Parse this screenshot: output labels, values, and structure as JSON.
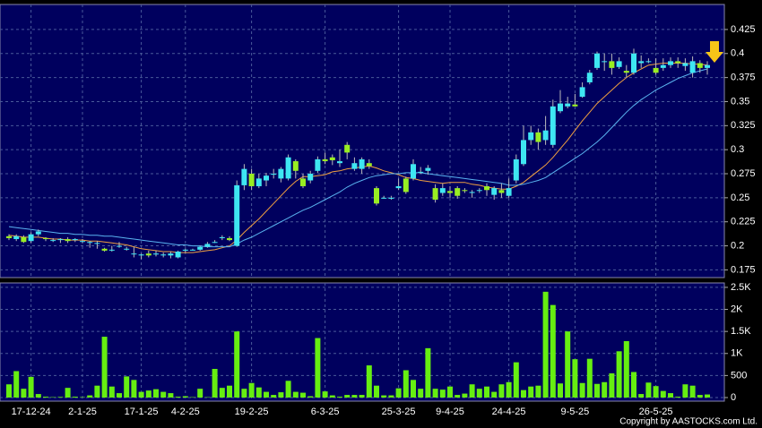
{
  "chart_data": [
    {
      "type": "candlestick",
      "categories": [
        null,
        null,
        null,
        "17-12-24",
        null,
        null,
        null,
        null,
        null,
        null,
        "2-1-25",
        null,
        null,
        null,
        null,
        null,
        null,
        null,
        "17-1-25",
        null,
        null,
        null,
        null,
        null,
        "4-2-25",
        null,
        null,
        null,
        null,
        null,
        null,
        null,
        null,
        "19-2-25",
        null,
        null,
        null,
        null,
        null,
        null,
        null,
        null,
        null,
        "6-3-25",
        null,
        null,
        null,
        null,
        null,
        null,
        null,
        null,
        null,
        "25-3-25",
        null,
        null,
        null,
        null,
        null,
        null,
        "9-4-25",
        null,
        null,
        null,
        null,
        null,
        null,
        null,
        "24-4-25",
        null,
        null,
        null,
        null,
        null,
        null,
        null,
        null,
        "9-5-25",
        null,
        null,
        null,
        null,
        null,
        null,
        null,
        null,
        null,
        null,
        "26-5-25",
        null,
        null,
        null,
        null,
        null,
        null,
        null
      ],
      "open": [
        0.21,
        0.207,
        0.209,
        0.205,
        0.212,
        0.208,
        0.206,
        0.206,
        0.207,
        0.206,
        0.205,
        0.204,
        0.203,
        0.197,
        0.196,
        0.2,
        0.197,
        0.192,
        0.19,
        0.192,
        0.191,
        0.19,
        0.19,
        0.188,
        0.195,
        0.196,
        0.196,
        0.199,
        0.204,
        0.208,
        0.208,
        0.2,
        0.263,
        0.275,
        0.262,
        0.268,
        0.274,
        0.27,
        0.27,
        0.288,
        0.27,
        0.268,
        0.278,
        0.29,
        0.292,
        0.286,
        0.305,
        0.28,
        0.28,
        0.286,
        0.26,
        0.25,
        0.249,
        0.26,
        0.27,
        0.27,
        0.277,
        0.278,
        0.26,
        0.255,
        0.257,
        0.26,
        0.258,
        0.255,
        0.258,
        0.262,
        0.253,
        0.258,
        0.252,
        0.268,
        0.285,
        0.31,
        0.318,
        0.31,
        0.305,
        0.34,
        0.345,
        0.347,
        0.355,
        0.37,
        0.385,
        0.392,
        0.392,
        0.386,
        0.382,
        0.38,
        0.39,
        0.392,
        0.385,
        0.385,
        0.388,
        0.392,
        0.387,
        0.38,
        0.39,
        0.385
      ],
      "high": [
        0.212,
        0.212,
        0.211,
        0.214,
        0.217,
        0.209,
        0.208,
        0.208,
        0.209,
        0.208,
        0.207,
        0.205,
        0.205,
        0.198,
        0.2,
        0.204,
        0.199,
        0.199,
        0.192,
        0.195,
        0.195,
        0.193,
        0.194,
        0.195,
        0.197,
        0.197,
        0.2,
        0.204,
        0.206,
        0.211,
        0.21,
        0.268,
        0.285,
        0.28,
        0.275,
        0.276,
        0.28,
        0.282,
        0.295,
        0.29,
        0.275,
        0.278,
        0.293,
        0.297,
        0.295,
        0.3,
        0.308,
        0.292,
        0.292,
        0.29,
        0.262,
        0.252,
        0.252,
        0.27,
        0.272,
        0.29,
        0.282,
        0.284,
        0.264,
        0.265,
        0.262,
        0.262,
        0.26,
        0.258,
        0.26,
        0.265,
        0.262,
        0.265,
        0.27,
        0.295,
        0.325,
        0.325,
        0.322,
        0.335,
        0.352,
        0.362,
        0.355,
        0.358,
        0.37,
        0.383,
        0.402,
        0.4,
        0.4,
        0.396,
        0.388,
        0.405,
        0.398,
        0.395,
        0.395,
        0.395,
        0.396,
        0.396,
        0.395,
        0.397,
        0.393,
        0.392
      ],
      "low": [
        0.206,
        0.205,
        0.203,
        0.203,
        0.21,
        0.205,
        0.204,
        0.203,
        0.203,
        0.204,
        0.203,
        0.198,
        0.197,
        0.194,
        0.194,
        0.198,
        0.195,
        0.188,
        0.186,
        0.188,
        0.189,
        0.188,
        0.187,
        0.187,
        0.193,
        0.195,
        0.195,
        0.198,
        0.203,
        0.206,
        0.205,
        0.199,
        0.258,
        0.258,
        0.26,
        0.262,
        0.27,
        0.266,
        0.268,
        0.27,
        0.26,
        0.265,
        0.276,
        0.285,
        0.284,
        0.282,
        0.29,
        0.278,
        0.275,
        0.28,
        0.242,
        0.249,
        0.248,
        0.258,
        0.254,
        0.268,
        0.275,
        0.274,
        0.245,
        0.252,
        0.25,
        0.249,
        0.255,
        0.25,
        0.255,
        0.252,
        0.248,
        0.25,
        0.25,
        0.265,
        0.283,
        0.305,
        0.3,
        0.305,
        0.302,
        0.338,
        0.343,
        0.345,
        0.354,
        0.368,
        0.383,
        0.382,
        0.378,
        0.384,
        0.375,
        0.378,
        0.385,
        0.39,
        0.378,
        0.382,
        0.385,
        0.385,
        0.382,
        0.375,
        0.38,
        0.378
      ],
      "close": [
        0.208,
        0.21,
        0.204,
        0.212,
        0.215,
        0.207,
        0.206,
        0.207,
        0.205,
        0.207,
        0.205,
        0.204,
        0.203,
        0.195,
        0.196,
        0.2,
        0.197,
        0.192,
        0.191,
        0.19,
        0.192,
        0.191,
        0.192,
        0.194,
        0.196,
        0.196,
        0.199,
        0.202,
        0.204,
        0.209,
        0.206,
        0.263,
        0.28,
        0.262,
        0.27,
        0.273,
        0.275,
        0.28,
        0.292,
        0.278,
        0.262,
        0.275,
        0.29,
        0.288,
        0.289,
        0.288,
        0.297,
        0.286,
        0.29,
        0.283,
        0.244,
        0.25,
        0.25,
        0.262,
        0.256,
        0.285,
        0.277,
        0.281,
        0.248,
        0.26,
        0.255,
        0.252,
        0.257,
        0.256,
        0.258,
        0.258,
        0.26,
        0.255,
        0.26,
        0.29,
        0.31,
        0.318,
        0.308,
        0.32,
        0.345,
        0.348,
        0.348,
        0.345,
        0.365,
        0.38,
        0.4,
        0.392,
        0.385,
        0.392,
        0.38,
        0.4,
        0.392,
        0.392,
        0.38,
        0.388,
        0.392,
        0.39,
        0.39,
        0.392,
        0.385,
        0.388
      ],
      "up_color": "#3ee6f2",
      "down_color": "#99ee22",
      "lines": [
        {
          "color": "#f0a040",
          "values": [
            0.211,
            0.21,
            0.209,
            0.209,
            0.209,
            0.208,
            0.207,
            0.207,
            0.206,
            0.206,
            0.206,
            0.205,
            0.205,
            0.204,
            0.203,
            0.202,
            0.201,
            0.199,
            0.197,
            0.196,
            0.195,
            0.194,
            0.194,
            0.193,
            0.193,
            0.193,
            0.194,
            0.195,
            0.196,
            0.198,
            0.2,
            0.206,
            0.214,
            0.221,
            0.228,
            0.236,
            0.244,
            0.252,
            0.26,
            0.267,
            0.272,
            0.272,
            0.273,
            0.274,
            0.277,
            0.278,
            0.28,
            0.281,
            0.282,
            0.283,
            0.281,
            0.278,
            0.276,
            0.274,
            0.271,
            0.27,
            0.268,
            0.267,
            0.266,
            0.265,
            0.266,
            0.266,
            0.266,
            0.264,
            0.263,
            0.261,
            0.26,
            0.259,
            0.259,
            0.262,
            0.266,
            0.272,
            0.278,
            0.284,
            0.292,
            0.301,
            0.31,
            0.32,
            0.33,
            0.339,
            0.348,
            0.355,
            0.362,
            0.369,
            0.375,
            0.38,
            0.384,
            0.388,
            0.389,
            0.39,
            0.39,
            0.39,
            0.39,
            0.389,
            0.389,
            0.388
          ]
        },
        {
          "color": "#5ab4f0",
          "values": [
            0.22,
            0.219,
            0.218,
            0.217,
            0.216,
            0.215,
            0.214,
            0.213,
            0.213,
            0.212,
            0.212,
            0.211,
            0.211,
            0.21,
            0.21,
            0.209,
            0.208,
            0.207,
            0.206,
            0.205,
            0.204,
            0.203,
            0.202,
            0.201,
            0.201,
            0.2,
            0.2,
            0.199,
            0.199,
            0.199,
            0.199,
            0.202,
            0.206,
            0.209,
            0.213,
            0.217,
            0.221,
            0.225,
            0.229,
            0.233,
            0.237,
            0.24,
            0.244,
            0.248,
            0.252,
            0.256,
            0.261,
            0.265,
            0.268,
            0.271,
            0.273,
            0.274,
            0.275,
            0.275,
            0.276,
            0.276,
            0.276,
            0.275,
            0.274,
            0.273,
            0.272,
            0.271,
            0.27,
            0.269,
            0.268,
            0.267,
            0.266,
            0.265,
            0.263,
            0.263,
            0.264,
            0.266,
            0.268,
            0.271,
            0.276,
            0.281,
            0.286,
            0.291,
            0.296,
            0.302,
            0.308,
            0.315,
            0.323,
            0.331,
            0.339,
            0.346,
            0.352,
            0.357,
            0.362,
            0.366,
            0.37,
            0.374,
            0.377,
            0.38,
            0.382,
            0.384
          ]
        }
      ],
      "ylim": [
        0.167,
        0.451
      ],
      "yticks": [
        0.175,
        0.2,
        0.225,
        0.25,
        0.275,
        0.3,
        0.325,
        0.35,
        0.375,
        0.4,
        0.425
      ],
      "grid": true
    },
    {
      "type": "bar",
      "values": [
        300,
        600,
        200,
        470,
        80,
        20,
        10,
        15,
        220,
        20,
        10,
        50,
        270,
        1380,
        250,
        100,
        480,
        400,
        130,
        160,
        190,
        130,
        100,
        20,
        30,
        10,
        200,
        10,
        650,
        220,
        270,
        1500,
        200,
        330,
        230,
        130,
        60,
        120,
        380,
        130,
        110,
        30,
        1350,
        140,
        50,
        20,
        60,
        60,
        60,
        730,
        270,
        50,
        50,
        210,
        620,
        400,
        200,
        1120,
        200,
        180,
        250,
        60,
        90,
        300,
        200,
        250,
        130,
        300,
        350,
        800,
        170,
        250,
        270,
        2400,
        2100,
        320,
        1500,
        870,
        330,
        880,
        310,
        350,
        550,
        1050,
        1280,
        580,
        80,
        340,
        260,
        150,
        100,
        20,
        300,
        270,
        60,
        70
      ],
      "color": "#66ee11",
      "ylim": [
        0,
        2600
      ],
      "yticks": [
        0,
        500,
        {
          "value": 1000,
          "label": "1K"
        },
        {
          "value": 1500,
          "label": "1.5K"
        },
        {
          "value": 2000,
          "label": "2K"
        },
        {
          "value": 2500,
          "label": "2.5K"
        }
      ],
      "grid": true,
      "source": "Copyright by AASTOCKS.com Ltd."
    }
  ]
}
